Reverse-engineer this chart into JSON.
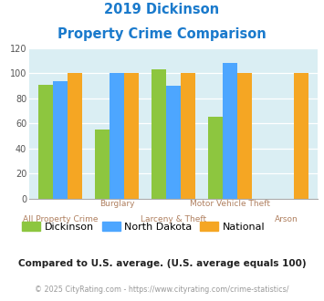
{
  "title_line1": "2019 Dickinson",
  "title_line2": "Property Crime Comparison",
  "categories": [
    "All Property Crime",
    "Burglary",
    "Larceny & Theft",
    "Motor Vehicle Theft",
    "Arson"
  ],
  "row1_labels": [
    "",
    "Burglary",
    "",
    "Motor Vehicle Theft",
    ""
  ],
  "row2_labels": [
    "All Property Crime",
    "",
    "Larceny & Theft",
    "",
    "Arson"
  ],
  "dickinson": [
    91,
    55,
    103,
    65,
    0
  ],
  "north_dakota": [
    94,
    100,
    90,
    108,
    0
  ],
  "national": [
    100,
    100,
    100,
    100,
    100
  ],
  "color_dickinson": "#8dc63f",
  "color_north_dakota": "#4da6ff",
  "color_national": "#f5a623",
  "ylim": [
    0,
    120
  ],
  "yticks": [
    0,
    20,
    40,
    60,
    80,
    100,
    120
  ],
  "bg_color": "#daeef3",
  "title_color": "#1a7acc",
  "xlabel_color": "#b08060",
  "legend_label_dickinson": "Dickinson",
  "legend_label_nd": "North Dakota",
  "legend_label_national": "National",
  "footnote1": "Compared to U.S. average. (U.S. average equals 100)",
  "footnote2": "© 2025 CityRating.com - https://www.cityrating.com/crime-statistics/",
  "footnote1_color": "#222222",
  "footnote2_color": "#999999",
  "footnote2_link_color": "#4da6ff"
}
